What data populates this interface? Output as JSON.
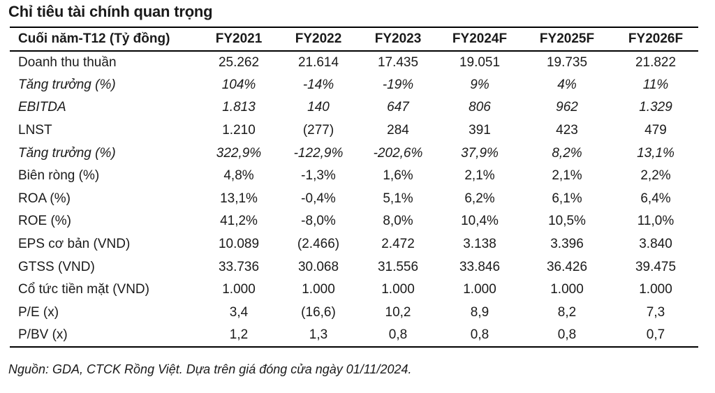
{
  "title": "Chỉ tiêu tài chính quan trọng",
  "table": {
    "header": [
      "Cuối năm-T12 (Tỷ đồng)",
      "FY2021",
      "FY2022",
      "FY2023",
      "FY2024F",
      "FY2025F",
      "FY2026F"
    ],
    "rows": [
      {
        "label": "Doanh thu thuần",
        "italic": false,
        "values": [
          "25.262",
          "21.614",
          "17.435",
          "19.051",
          "19.735",
          "21.822"
        ]
      },
      {
        "label": "Tăng trưởng (%)",
        "italic": true,
        "values": [
          "104%",
          "-14%",
          "-19%",
          "9%",
          "4%",
          "11%"
        ]
      },
      {
        "label": "EBITDA",
        "italic": true,
        "values": [
          "1.813",
          "140",
          "647",
          "806",
          "962",
          "1.329"
        ]
      },
      {
        "label": "LNST",
        "italic": false,
        "values": [
          "1.210",
          "(277)",
          "284",
          "391",
          "423",
          "479"
        ]
      },
      {
        "label": "Tăng trưởng (%)",
        "italic": true,
        "values": [
          "322,9%",
          "-122,9%",
          "-202,6%",
          "37,9%",
          "8,2%",
          "13,1%"
        ]
      },
      {
        "label": "Biên ròng (%)",
        "italic": false,
        "values": [
          "4,8%",
          "-1,3%",
          "1,6%",
          "2,1%",
          "2,1%",
          "2,2%"
        ]
      },
      {
        "label": "ROA (%)",
        "italic": false,
        "values": [
          "13,1%",
          "-0,4%",
          "5,1%",
          "6,2%",
          "6,1%",
          "6,4%"
        ]
      },
      {
        "label": "ROE (%)",
        "italic": false,
        "values": [
          "41,2%",
          "-8,0%",
          "8,0%",
          "10,4%",
          "10,5%",
          "11,0%"
        ]
      },
      {
        "label": "EPS cơ bản (VND)",
        "italic": false,
        "values": [
          "10.089",
          "(2.466)",
          "2.472",
          "3.138",
          "3.396",
          "3.840"
        ]
      },
      {
        "label": "GTSS (VND)",
        "italic": false,
        "values": [
          "33.736",
          "30.068",
          "31.556",
          "33.846",
          "36.426",
          "39.475"
        ]
      },
      {
        "label": "Cổ tức tiền mặt (VND)",
        "italic": false,
        "values": [
          "1.000",
          "1.000",
          "1.000",
          "1.000",
          "1.000",
          "1.000"
        ]
      },
      {
        "label": "P/E (x)",
        "italic": false,
        "values": [
          "3,4",
          "(16,6)",
          "10,2",
          "8,9",
          "8,2",
          "7,3"
        ]
      },
      {
        "label": "P/BV (x)",
        "italic": false,
        "values": [
          "1,2",
          "1,3",
          "0,8",
          "0,8",
          "0,8",
          "0,7"
        ]
      }
    ]
  },
  "source": "Nguồn: GDA, CTCK Rồng Việt. Dựa trên giá đóng cửa ngày 01/11/2024."
}
